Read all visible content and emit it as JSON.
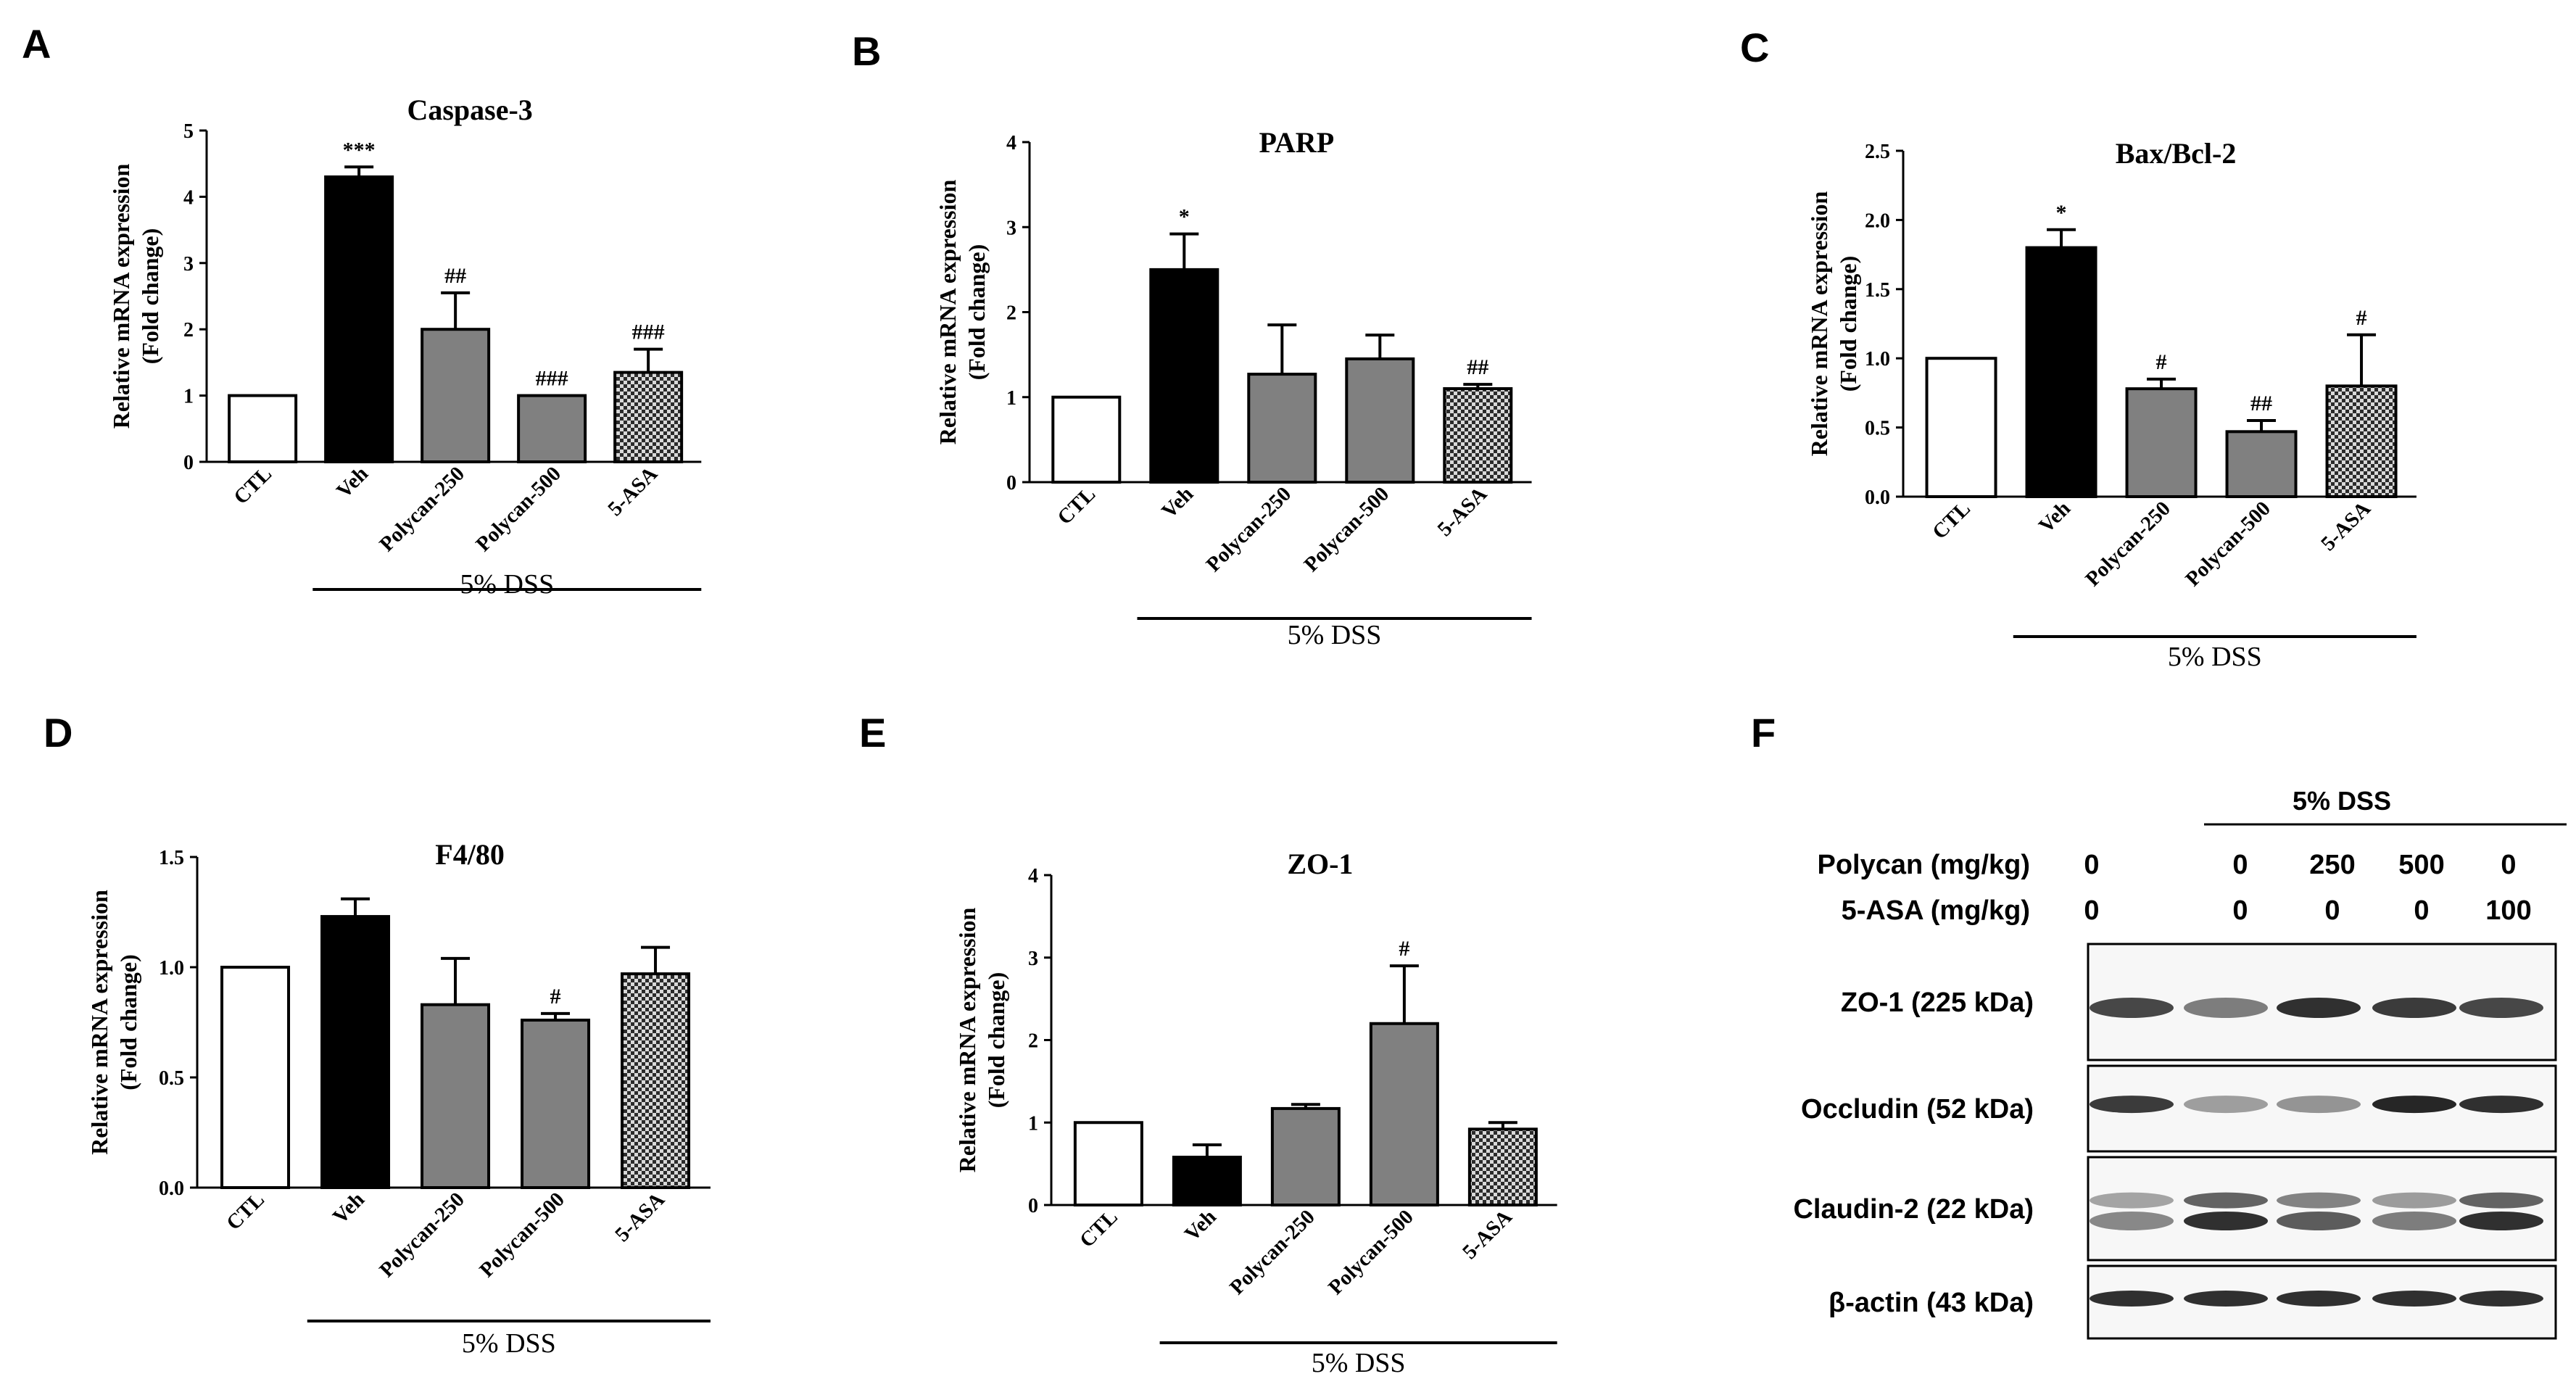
{
  "colors": {
    "ctl": "#ffffff",
    "veh": "#000000",
    "polycan": "#808080",
    "asa_dark": "#2b2b2b",
    "asa_light": "#d9d9d9",
    "text": "#000000",
    "blot_band": "#1a1a1a"
  },
  "chart_data": [
    {
      "panel": "A",
      "type": "bar",
      "title": "Caspase-3",
      "ylabel_line1": "Relative mRNA expression",
      "ylabel_line2": "(Fold change)",
      "categories": [
        "CTL",
        "Veh",
        "Polycan-250",
        "Polycan-500",
        "5-ASA"
      ],
      "values": [
        1.0,
        4.3,
        2.0,
        1.0,
        1.35
      ],
      "errors": [
        0,
        0.15,
        0.55,
        0,
        0.35
      ],
      "annotations": [
        "",
        "***",
        "##",
        "###",
        "###"
      ],
      "ylim": [
        0,
        5
      ],
      "yticks": [
        "0",
        "1",
        "2",
        "3",
        "4",
        "5"
      ],
      "group_label": "5% DSS"
    },
    {
      "panel": "B",
      "type": "bar",
      "title": "PARP",
      "ylabel_line1": "Relative mRNA expression",
      "ylabel_line2": "(Fold change)",
      "categories": [
        "CTL",
        "Veh",
        "Polycan-250",
        "Polycan-500",
        "5-ASA"
      ],
      "values": [
        1.0,
        2.5,
        1.27,
        1.45,
        1.1
      ],
      "errors": [
        0,
        0.42,
        0.58,
        0.28,
        0.05
      ],
      "annotations": [
        "",
        "*",
        "",
        "",
        "##"
      ],
      "ylim": [
        0,
        4
      ],
      "yticks": [
        "0",
        "1",
        "2",
        "3",
        "4"
      ],
      "group_label": "5% DSS"
    },
    {
      "panel": "C",
      "type": "bar",
      "title": "Bax/Bcl-2",
      "ylabel_line1": "Relative mRNA expression",
      "ylabel_line2": "(Fold change)",
      "categories": [
        "CTL",
        "Veh",
        "Polycan-250",
        "Polycan-500",
        "5-ASA"
      ],
      "values": [
        1.0,
        1.8,
        0.78,
        0.47,
        0.8
      ],
      "errors": [
        0,
        0.13,
        0.07,
        0.08,
        0.37
      ],
      "annotations": [
        "",
        "*",
        "#",
        "##",
        "#"
      ],
      "ylim": [
        0,
        2.5
      ],
      "yticks": [
        "0.0",
        "0.5",
        "1.0",
        "1.5",
        "2.0",
        "2.5"
      ],
      "group_label": "5% DSS"
    },
    {
      "panel": "D",
      "type": "bar",
      "title": "F4/80",
      "ylabel_line1": "Relative mRNA expression",
      "ylabel_line2": "(Fold change)",
      "categories": [
        "CTL",
        "Veh",
        "Polycan-250",
        "Polycan-500",
        "5-ASA"
      ],
      "values": [
        1.0,
        1.23,
        0.83,
        0.76,
        0.97
      ],
      "errors": [
        0,
        0.08,
        0.21,
        0.03,
        0.12
      ],
      "annotations": [
        "",
        "",
        "",
        "#",
        ""
      ],
      "ylim": [
        0,
        1.5
      ],
      "yticks": [
        "0.0",
        "0.5",
        "1.0",
        "1.5"
      ],
      "group_label": "5% DSS"
    },
    {
      "panel": "E",
      "type": "bar",
      "title": "ZO-1",
      "ylabel_line1": "Relative mRNA expression",
      "ylabel_line2": "(Fold change)",
      "categories": [
        "CTL",
        "Veh",
        "Polycan-250",
        "Polycan-500",
        "5-ASA"
      ],
      "values": [
        1.0,
        0.58,
        1.17,
        2.2,
        0.92
      ],
      "errors": [
        0,
        0.15,
        0.05,
        0.7,
        0.08
      ],
      "annotations": [
        "",
        "",
        "",
        "#",
        ""
      ],
      "ylim": [
        0,
        4
      ],
      "yticks": [
        "0",
        "1",
        "2",
        "3",
        "4"
      ],
      "group_label": "5% DSS"
    }
  ],
  "blot": {
    "panel": "F",
    "header": "5% DSS",
    "row_labels": [
      "Polycan (mg/kg)",
      "5-ASA (mg/kg)"
    ],
    "polycan_doses": [
      "0",
      "0",
      "250",
      "500",
      "0"
    ],
    "asa_doses": [
      "0",
      "0",
      "0",
      "0",
      "100"
    ],
    "bands": [
      {
        "label": "ZO-1 (225 kDa)",
        "intensities": [
          0.8,
          0.55,
          0.9,
          0.85,
          0.8
        ]
      },
      {
        "label": "Occludin (52 kDa)",
        "intensities": [
          0.85,
          0.4,
          0.45,
          0.95,
          0.9
        ]
      },
      {
        "label": "Claudin-2 (22 kDa)",
        "intensities": [
          0.5,
          0.9,
          0.7,
          0.55,
          0.9
        ]
      },
      {
        "label": "β-actin (43 kDa)",
        "intensities": [
          0.9,
          0.9,
          0.9,
          0.9,
          0.9
        ]
      }
    ]
  }
}
